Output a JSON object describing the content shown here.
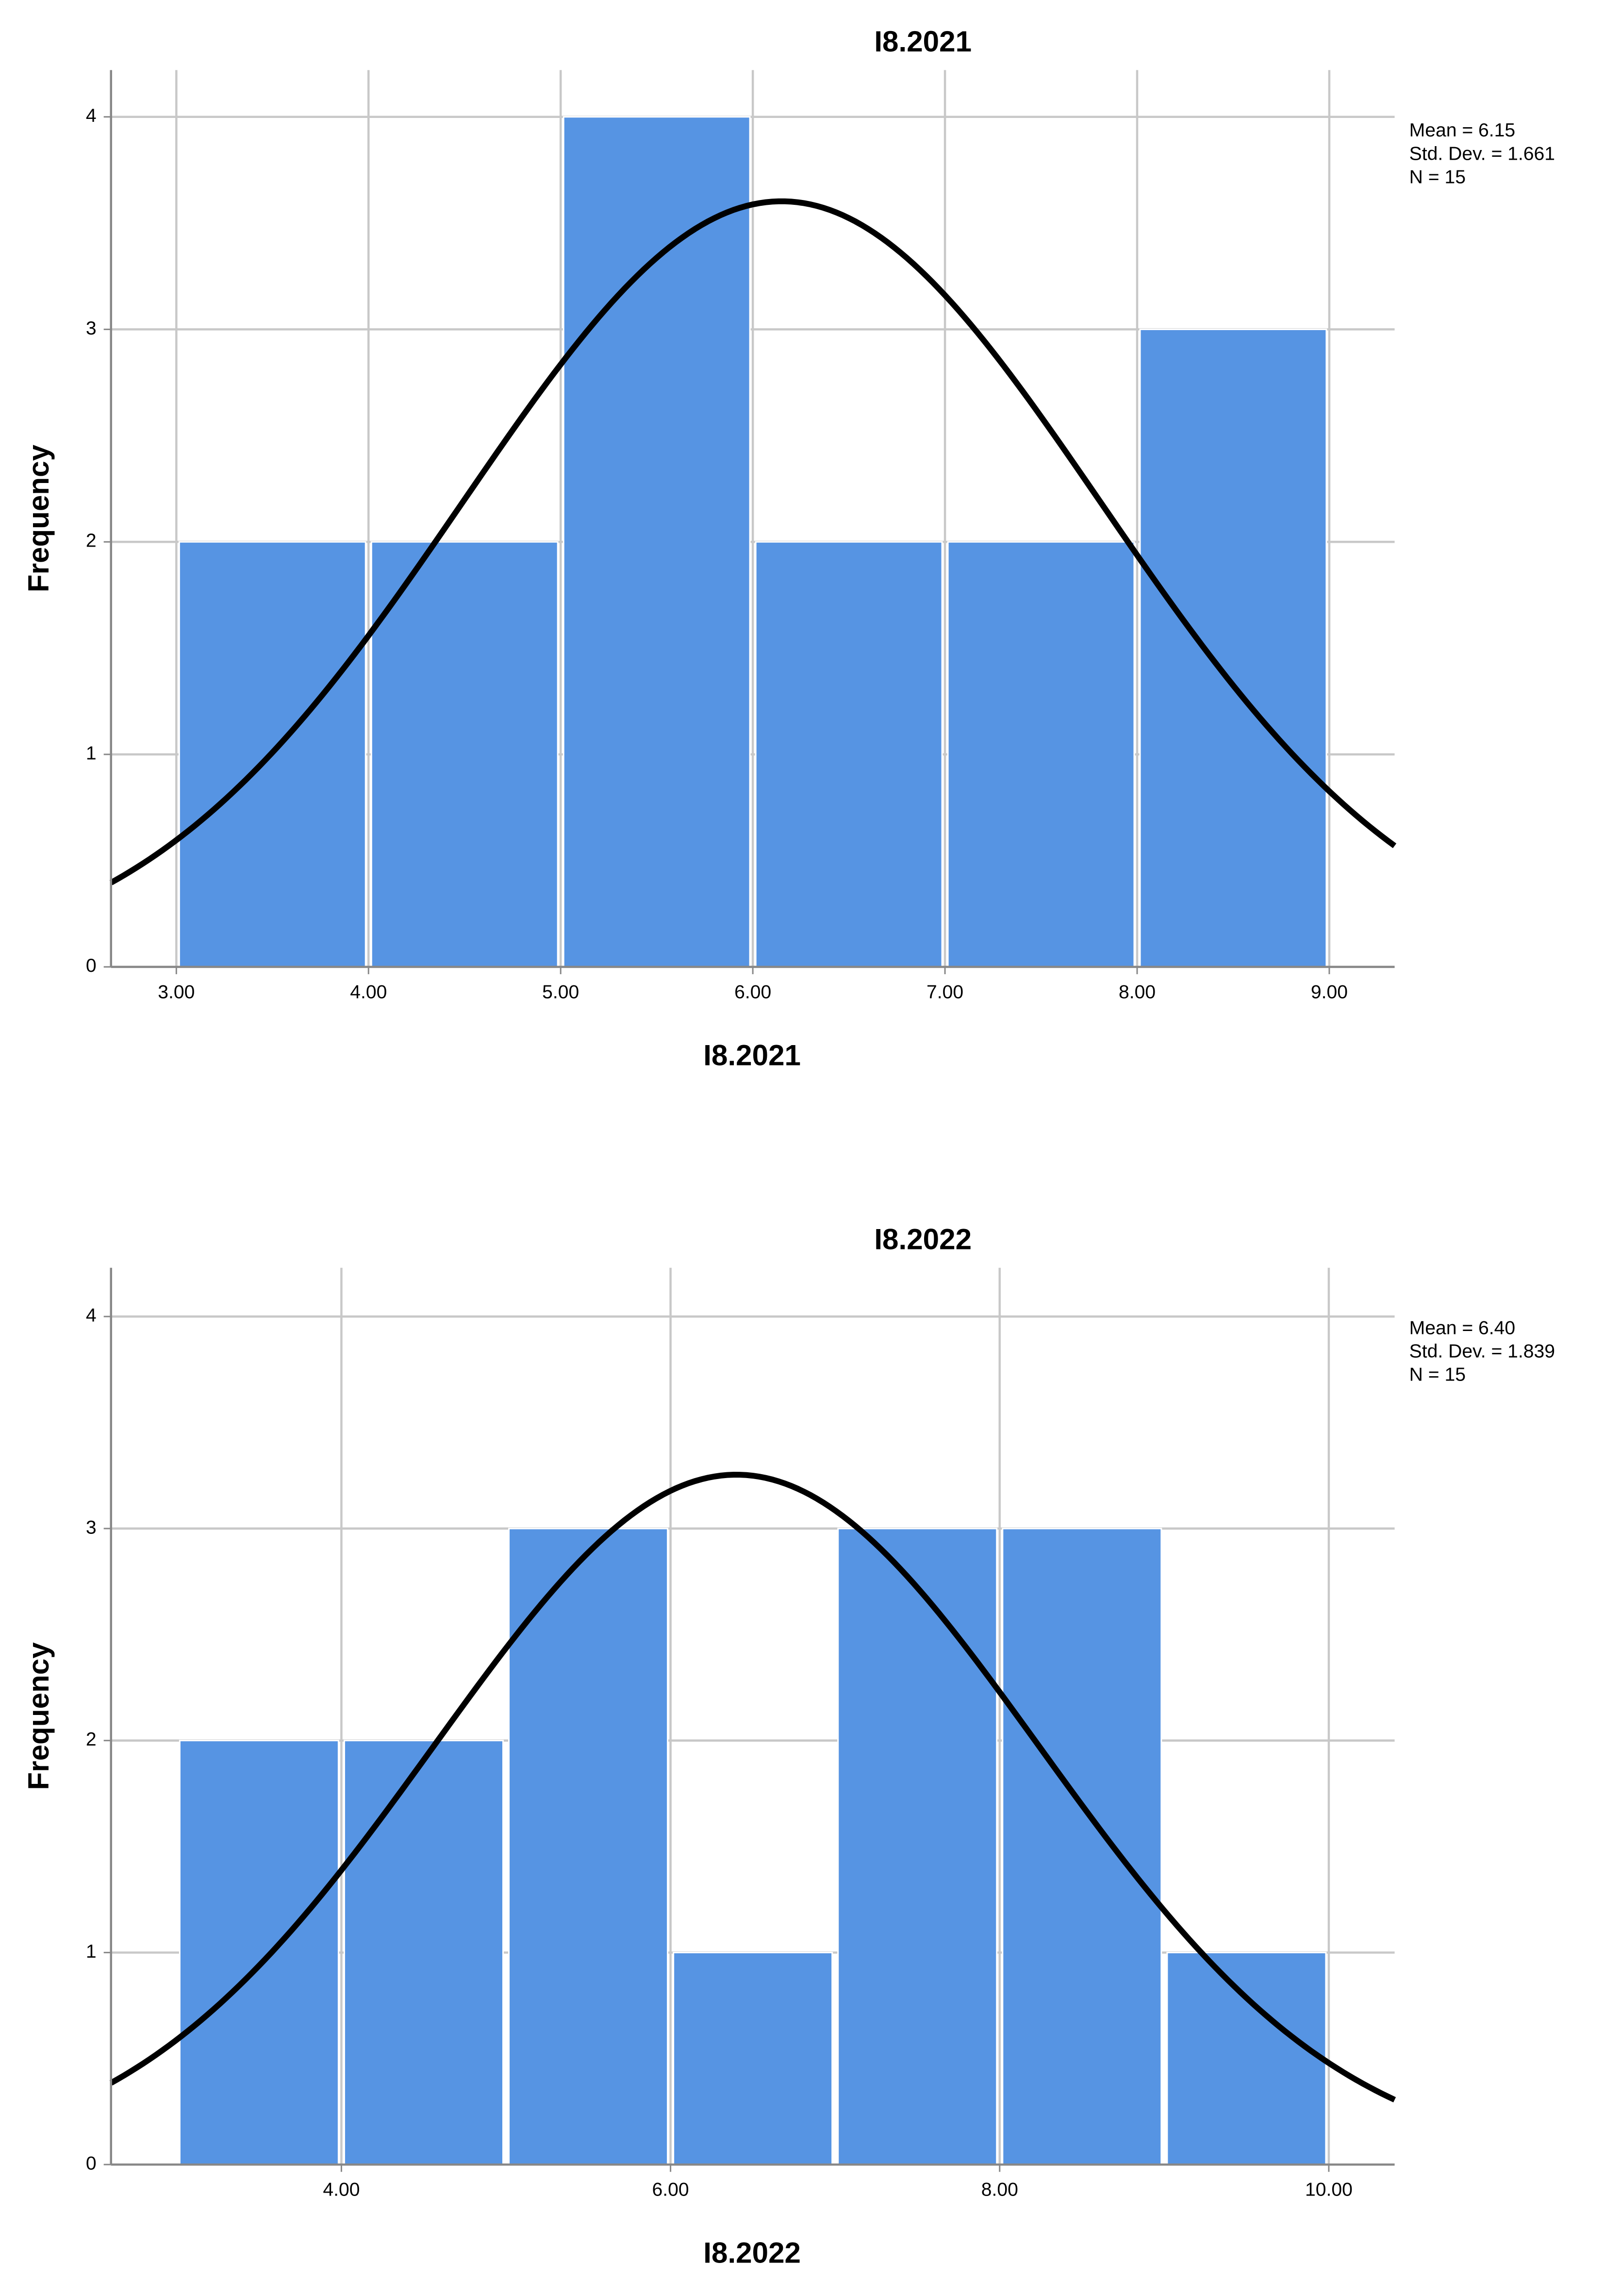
{
  "chart_data": [
    {
      "type": "histogram",
      "title": "I8.2021",
      "x_label": "I8.2021",
      "y_label": "Frequency",
      "bins": [
        3,
        4,
        5,
        6,
        7,
        8,
        9
      ],
      "values": [
        2,
        2,
        4,
        2,
        2,
        3
      ],
      "color": "#5694e3",
      "xlim": [
        2.66,
        9.34
      ],
      "ylim": [
        0,
        4.22
      ],
      "xticks": [
        {
          "value": 3,
          "label": "3.00"
        },
        {
          "value": 4,
          "label": "4.00"
        },
        {
          "value": 5,
          "label": "5.00"
        },
        {
          "value": 6,
          "label": "6.00"
        },
        {
          "value": 7,
          "label": "7.00"
        },
        {
          "value": 8,
          "label": "8.00"
        },
        {
          "value": 9,
          "label": "9.00"
        }
      ],
      "yticks": [
        0,
        1,
        2,
        3,
        4
      ],
      "grid": true,
      "normal_curve": {
        "mean": 6.15,
        "sd": 1.661,
        "n": 15,
        "color": "#000000",
        "labels": [
          "Mean = 6.15",
          "Std. Dev. = 1.661",
          "N = 15"
        ]
      }
    },
    {
      "type": "histogram",
      "title": "I8.2022",
      "x_label": "I8.2022",
      "y_label": "Frequency",
      "bins": [
        3,
        4,
        5,
        6,
        7,
        8,
        9,
        10
      ],
      "values": [
        2,
        2,
        3,
        1,
        3,
        3,
        1
      ],
      "color": "#5694e3",
      "xlim": [
        2.6,
        10.4
      ],
      "ylim": [
        0,
        4.23
      ],
      "xticks": [
        {
          "value": 4,
          "label": "4.00"
        },
        {
          "value": 6,
          "label": "6.00"
        },
        {
          "value": 8,
          "label": "8.00"
        },
        {
          "value": 10,
          "label": "10.00"
        }
      ],
      "yticks": [
        0,
        1,
        2,
        3,
        4
      ],
      "grid": true,
      "normal_curve": {
        "mean": 6.4,
        "sd": 1.839,
        "n": 15,
        "color": "#000000",
        "labels": [
          "Mean = 6.40",
          "Std. Dev. = 1.839",
          "N = 15"
        ]
      }
    }
  ]
}
